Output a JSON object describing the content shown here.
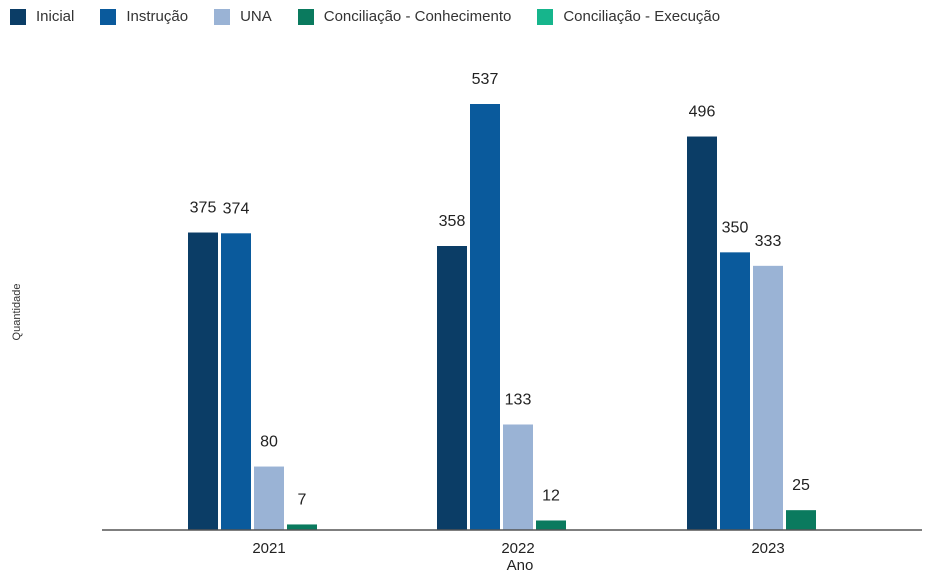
{
  "chart_data": {
    "type": "bar",
    "categories": [
      "2021",
      "2022",
      "2023"
    ],
    "series": [
      {
        "name": "Inicial",
        "color": "#0b3d66",
        "values": [
          375,
          358,
          496
        ]
      },
      {
        "name": "Instrução",
        "color": "#0a5a9c",
        "values": [
          374,
          537,
          350
        ]
      },
      {
        "name": "UNA",
        "color": "#9ab3d5",
        "values": [
          80,
          133,
          333
        ]
      },
      {
        "name": "Conciliação - Conhecimento",
        "color": "#0a7a5e",
        "values": [
          7,
          12,
          25
        ]
      },
      {
        "name": "Conciliação - Execução",
        "color": "#16b58c",
        "values": [
          null,
          null,
          null
        ]
      }
    ],
    "xlabel": "Ano",
    "ylabel": "Quantidade",
    "ylim": [
      0,
      560
    ],
    "grid": false,
    "legend": "top"
  }
}
